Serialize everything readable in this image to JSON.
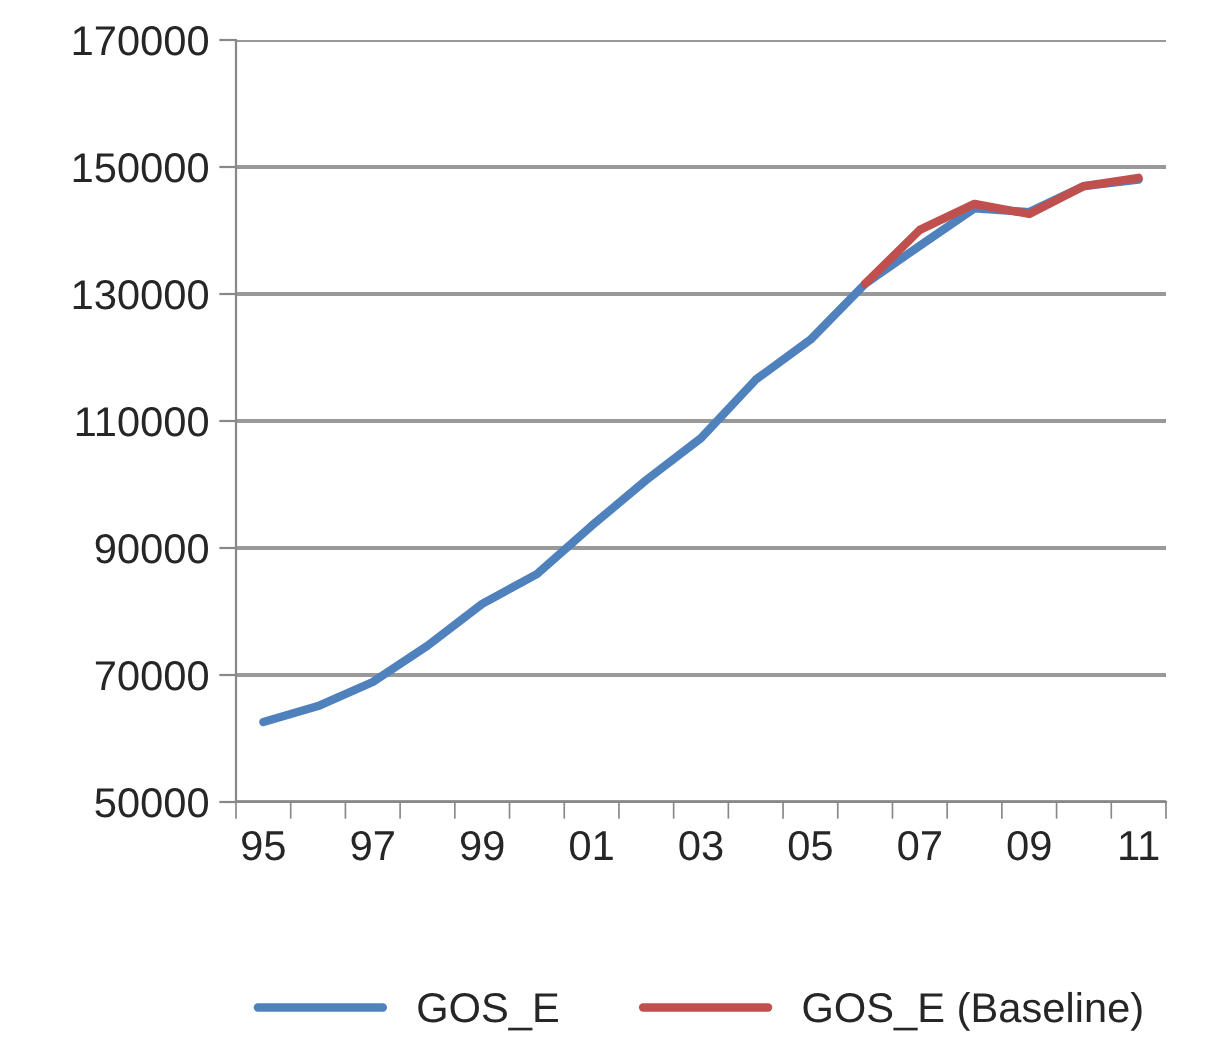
{
  "chart_data": {
    "type": "line",
    "categories": [
      "95",
      null,
      "97",
      null,
      "99",
      null,
      "01",
      null,
      "03",
      null,
      "05",
      null,
      "07",
      null,
      "09",
      null,
      "11"
    ],
    "series": [
      {
        "name": "GOS_E",
        "color": "#4f81bd",
        "values": [
          62600,
          65100,
          68900,
          74600,
          81200,
          85900,
          93500,
          100700,
          107300,
          116500,
          122800,
          131600,
          137600,
          143500,
          142900,
          147000,
          148000
        ]
      },
      {
        "name": "GOS_E (Baseline)",
        "color": "#c0504d",
        "values": [
          null,
          null,
          null,
          null,
          null,
          null,
          null,
          null,
          null,
          null,
          null,
          131600,
          140100,
          144200,
          142600,
          147000,
          148300
        ]
      }
    ],
    "ylim": [
      50000,
      170000
    ],
    "yticks": [
      50000,
      70000,
      90000,
      110000,
      130000,
      150000,
      170000
    ],
    "grid": "y",
    "legend": "bottom",
    "marker": "none",
    "line_style": "solid"
  }
}
